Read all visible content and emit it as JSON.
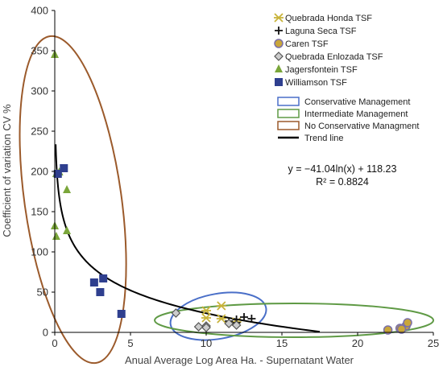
{
  "chart_data": {
    "type": "scatter",
    "xlabel": "Anual Average  Log Area Ha. - Supernatant Water",
    "ylabel": "Coefficient of variation CV %",
    "xlim": [
      0,
      25
    ],
    "ylim": [
      0,
      400
    ],
    "x_ticks": [
      0,
      5,
      10,
      15,
      20,
      25
    ],
    "y_ticks": [
      0,
      50,
      100,
      150,
      200,
      250,
      300,
      350,
      400
    ],
    "grid": false,
    "legend_position": "top-right",
    "series": [
      {
        "name": "Quebrada Honda TSF",
        "marker": "asterisk",
        "color": "#c8b33a",
        "points": [
          [
            10,
            18
          ],
          [
            10,
            27
          ],
          [
            11,
            17
          ],
          [
            11,
            33
          ],
          [
            12,
            13
          ]
        ]
      },
      {
        "name": "Laguna Seca TSF",
        "marker": "plus",
        "color": "#111111",
        "points": [
          [
            12,
            16
          ],
          [
            12.5,
            19
          ],
          [
            13,
            17
          ],
          [
            12,
            12
          ],
          [
            11.5,
            14
          ]
        ]
      },
      {
        "name": "Caren TSF",
        "marker": "circle",
        "color": "#7a6fa8",
        "points": [
          [
            22,
            3
          ],
          [
            22.8,
            5
          ],
          [
            23.2,
            8
          ],
          [
            23.3,
            12
          ],
          [
            22.9,
            4
          ]
        ]
      },
      {
        "name": "Quebrada Enlozada TSF",
        "marker": "diamond",
        "color": "#555555",
        "points": [
          [
            8,
            24
          ],
          [
            9.5,
            7
          ],
          [
            10,
            8
          ],
          [
            10,
            6
          ],
          [
            11.5,
            11
          ],
          [
            12,
            9
          ]
        ]
      },
      {
        "name": "Jagersfontein TSF",
        "marker": "triangle",
        "color": "#7aa63a",
        "points": [
          [
            0,
            345
          ],
          [
            0.1,
            197
          ],
          [
            0.3,
            199
          ],
          [
            0.8,
            177
          ],
          [
            0,
            132
          ],
          [
            0.1,
            119
          ],
          [
            0.8,
            126
          ]
        ]
      },
      {
        "name": "Williamson TSF",
        "marker": "square",
        "color": "#2f3f8f",
        "points": [
          [
            0.2,
            197
          ],
          [
            0.6,
            204
          ],
          [
            2.6,
            62
          ],
          [
            3,
            50
          ],
          [
            3.2,
            67
          ],
          [
            4.4,
            23
          ]
        ]
      }
    ],
    "management_legend": [
      {
        "label": "Conservative Management",
        "color": "#4a6fc8"
      },
      {
        "label": "Intermediate Management",
        "color": "#5f9a45"
      },
      {
        "label": "No Conservative Managment",
        "color": "#9b5a2b"
      },
      {
        "label": "Trend line",
        "color": "#000000"
      }
    ],
    "trend": {
      "a": -41.04,
      "b": 118.23,
      "x_start": 0.06,
      "x_end": 17.5
    },
    "equation_text": "y = −41.04ln(x) + 118.23",
    "r2_text": "R² = 0.8824",
    "ellipses": [
      {
        "cx": 1.2,
        "cy": 165,
        "rx": 3.2,
        "ry": 205,
        "angle_deg": -8,
        "color": "#9b5a2b"
      },
      {
        "cx": 10.8,
        "cy": 20,
        "rx": 3.2,
        "ry": 28,
        "angle_deg": -10,
        "color": "#4a6fc8"
      },
      {
        "cx": 15.8,
        "cy": 15,
        "rx": 9.2,
        "ry": 21,
        "angle_deg": 0,
        "color": "#5f9a45"
      }
    ]
  }
}
